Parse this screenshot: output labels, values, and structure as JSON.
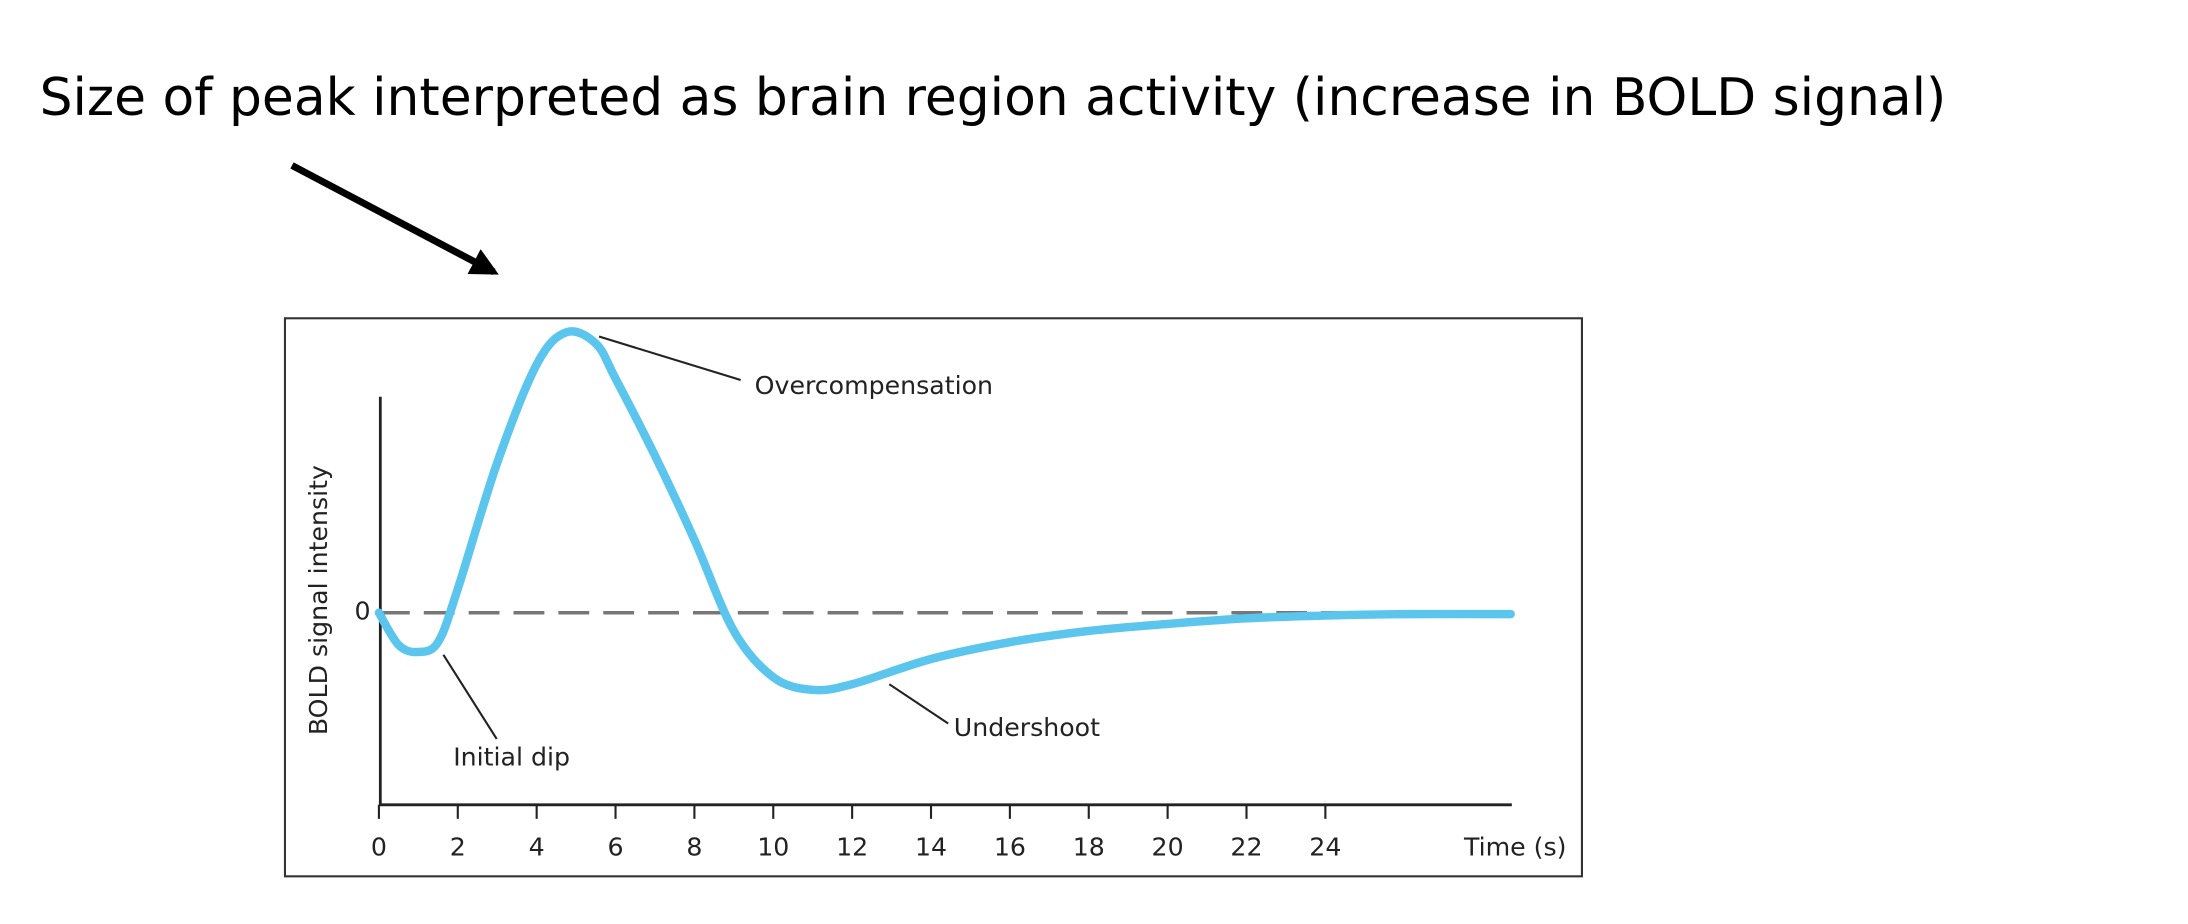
{
  "slide_title": "Size of peak interpreted as brain region activity (increase in BOLD signal)",
  "chart_data": {
    "type": "line",
    "x_label": "Time (s)",
    "y_label": "BOLD signal intensity",
    "annotations": [
      "Overcompensation",
      "Initial dip",
      "Undershoot"
    ],
    "color": "#5bc5ee",
    "x": [
      0,
      0.5,
      1,
      1.5,
      2,
      3,
      4,
      4.75,
      5.5,
      6,
      7,
      8,
      9,
      10,
      11,
      12,
      14,
      16,
      18,
      20,
      22,
      24,
      26,
      28.7
    ],
    "values": [
      0,
      -0.46,
      -0.56,
      -0.42,
      0.34,
      2.14,
      3.54,
      4.0,
      3.84,
      3.34,
      2.24,
      1.04,
      -0.26,
      -0.92,
      -1.1,
      -1.02,
      -0.66,
      -0.42,
      -0.26,
      -0.16,
      -0.08,
      -0.04,
      -0.02,
      -0.02
    ],
    "xlim": [
      0,
      28.7
    ],
    "xticks": [
      0,
      2,
      4,
      6,
      8,
      10,
      12,
      14,
      16,
      18,
      20,
      22,
      24
    ],
    "ylim": [
      -2.74,
      4.2
    ],
    "yticks": [
      0
    ],
    "grid": true
  }
}
